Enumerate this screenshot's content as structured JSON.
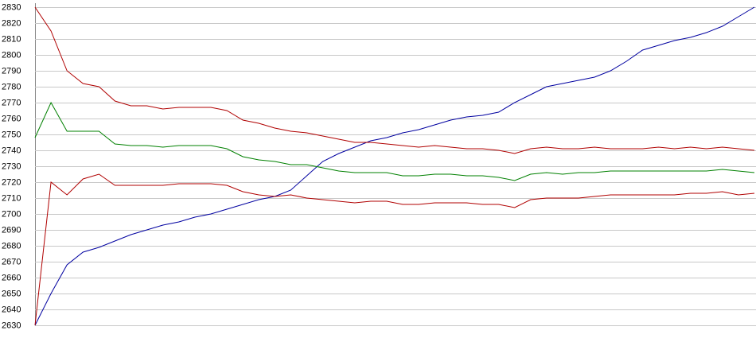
{
  "chart_data": {
    "type": "line",
    "ylim": [
      2630,
      2830
    ],
    "yticks": [
      2630,
      2640,
      2650,
      2660,
      2670,
      2680,
      2690,
      2700,
      2710,
      2720,
      2730,
      2740,
      2750,
      2760,
      2770,
      2780,
      2790,
      2800,
      2810,
      2820,
      2830
    ],
    "grid": true,
    "series": [
      {
        "color": "#0000a0",
        "values": [
          2630,
          2650,
          2668,
          2676,
          2679,
          2683,
          2687,
          2690,
          2693,
          2695,
          2698,
          2700,
          2703,
          2706,
          2709,
          2711,
          2715,
          2724,
          2733,
          2738,
          2742,
          2746,
          2748,
          2751,
          2753,
          2756,
          2759,
          2761,
          2762,
          2764,
          2770,
          2775,
          2780,
          2782,
          2784,
          2786,
          2790,
          2796,
          2803,
          2806,
          2809,
          2811,
          2814,
          2818,
          2824,
          2830
        ]
      },
      {
        "color": "#b00000",
        "values": [
          2830,
          2815,
          2790,
          2782,
          2780,
          2771,
          2768,
          2768,
          2766,
          2767,
          2767,
          2767,
          2765,
          2759,
          2757,
          2754,
          2752,
          2751,
          2749,
          2747,
          2745,
          2745,
          2744,
          2743,
          2742,
          2743,
          2742,
          2741,
          2741,
          2740,
          2738,
          2741,
          2742,
          2741,
          2741,
          2742,
          2741,
          2741,
          2741,
          2742,
          2741,
          2742,
          2741,
          2742,
          2741,
          2740
        ]
      },
      {
        "color": "#008000",
        "values": [
          2748,
          2770,
          2752,
          2752,
          2752,
          2744,
          2743,
          2743,
          2742,
          2743,
          2743,
          2743,
          2741,
          2736,
          2734,
          2733,
          2731,
          2731,
          2729,
          2727,
          2726,
          2726,
          2726,
          2724,
          2724,
          2725,
          2725,
          2724,
          2724,
          2723,
          2721,
          2725,
          2726,
          2725,
          2726,
          2726,
          2727,
          2727,
          2727,
          2727,
          2727,
          2727,
          2727,
          2728,
          2727,
          2726
        ]
      },
      {
        "color": "#b00000",
        "values": [
          2630,
          2720,
          2712,
          2722,
          2725,
          2718,
          2718,
          2718,
          2718,
          2719,
          2719,
          2719,
          2718,
          2714,
          2712,
          2711,
          2712,
          2710,
          2709,
          2708,
          2707,
          2708,
          2708,
          2706,
          2706,
          2707,
          2707,
          2707,
          2706,
          2706,
          2704,
          2709,
          2710,
          2710,
          2710,
          2711,
          2712,
          2712,
          2712,
          2712,
          2712,
          2713,
          2713,
          2714,
          2712,
          2713
        ]
      }
    ]
  }
}
